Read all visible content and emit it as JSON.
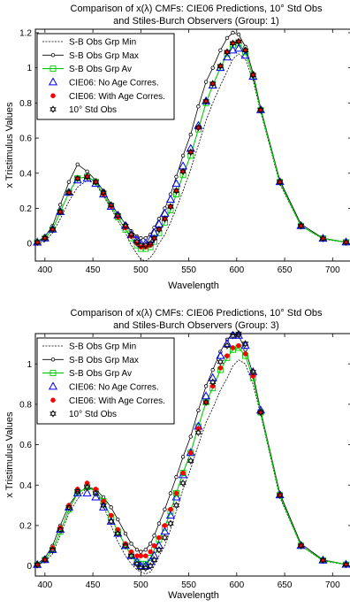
{
  "chart_data": [
    {
      "type": "line",
      "title_lines": [
        "Comparison of x(λ) CMFs: CIE06 Predictions, 10° Std Obs",
        "and Stiles-Burch Observers (Group: 1)"
      ],
      "xlabel": "Wavelength",
      "ylabel": "x Tristimulus Values",
      "xlim": [
        390,
        720
      ],
      "ylim": [
        -0.1,
        1.22
      ],
      "xticks": [
        400,
        450,
        500,
        550,
        600,
        650,
        700
      ],
      "yticks": [
        0,
        0.2,
        0.4,
        0.6,
        0.8,
        1,
        1.2
      ],
      "ytick_labels": [
        "0",
        "0.2",
        "0.4",
        "0.6",
        "0.8",
        "1",
        "1.2"
      ],
      "legend_position": "top-left",
      "x": [
        392,
        400,
        408,
        416,
        425,
        434,
        444,
        453,
        461,
        469,
        476,
        484,
        490,
        496,
        500,
        505,
        510,
        514,
        519,
        525,
        531,
        537,
        544,
        552,
        560,
        568,
        575,
        583,
        590,
        596,
        602,
        609,
        617,
        625,
        645,
        667,
        690,
        714
      ],
      "series": [
        {
          "name": "S-B Obs Grp Min",
          "style": "dashed",
          "marker": "none",
          "values": [
            0.0,
            0.01,
            0.06,
            0.14,
            0.24,
            0.32,
            0.36,
            0.34,
            0.27,
            0.2,
            0.13,
            0.06,
            -0.01,
            -0.06,
            -0.09,
            -0.1,
            -0.08,
            -0.05,
            0.0,
            0.05,
            0.12,
            0.2,
            0.3,
            0.42,
            0.56,
            0.7,
            0.8,
            0.9,
            0.98,
            1.05,
            1.08,
            1.05,
            0.93,
            0.75,
            0.34,
            0.1,
            0.025,
            0.006
          ]
        },
        {
          "name": "S-B Obs Grp Max",
          "style": "solid",
          "marker": "dot",
          "values": [
            0.01,
            0.04,
            0.1,
            0.22,
            0.35,
            0.45,
            0.41,
            0.36,
            0.3,
            0.22,
            0.17,
            0.11,
            0.07,
            0.04,
            0.03,
            0.03,
            0.05,
            0.09,
            0.14,
            0.2,
            0.28,
            0.38,
            0.5,
            0.62,
            0.78,
            0.92,
            1.0,
            1.1,
            1.17,
            1.2,
            1.19,
            1.12,
            0.97,
            0.77,
            0.36,
            0.11,
            0.03,
            0.008
          ]
        },
        {
          "name": "S-B Obs Grp Av",
          "style": "solid",
          "marker": "square",
          "values": [
            0.006,
            0.03,
            0.08,
            0.18,
            0.29,
            0.37,
            0.38,
            0.35,
            0.28,
            0.21,
            0.15,
            0.08,
            0.03,
            -0.01,
            -0.03,
            -0.03,
            -0.02,
            0.01,
            0.06,
            0.12,
            0.19,
            0.28,
            0.39,
            0.5,
            0.65,
            0.8,
            0.9,
            1.0,
            1.08,
            1.13,
            1.14,
            1.09,
            0.95,
            0.76,
            0.35,
            0.1,
            0.028,
            0.007
          ]
        },
        {
          "name": "CIE06: No Age Corres.",
          "style": "none",
          "marker": "triangle",
          "values": [
            0.006,
            0.03,
            0.08,
            0.18,
            0.29,
            0.36,
            0.37,
            0.34,
            0.28,
            0.21,
            0.16,
            0.1,
            0.05,
            0.02,
            0.0,
            0.0,
            0.02,
            0.06,
            0.11,
            0.17,
            0.25,
            0.34,
            0.44,
            0.54,
            0.67,
            0.81,
            0.9,
            1.0,
            1.06,
            1.1,
            1.11,
            1.07,
            0.95,
            0.76,
            0.35,
            0.1,
            0.028,
            0.007
          ]
        },
        {
          "name": "CIE06: With Age Corres.",
          "style": "none",
          "marker": "filled-circle",
          "values": [
            0.006,
            0.03,
            0.08,
            0.18,
            0.29,
            0.37,
            0.38,
            0.35,
            0.28,
            0.21,
            0.15,
            0.09,
            0.04,
            0.0,
            -0.02,
            -0.02,
            -0.01,
            0.03,
            0.08,
            0.14,
            0.21,
            0.3,
            0.41,
            0.52,
            0.66,
            0.81,
            0.91,
            1.01,
            1.09,
            1.14,
            1.15,
            1.1,
            0.96,
            0.76,
            0.35,
            0.1,
            0.028,
            0.007
          ]
        },
        {
          "name": "10° Std Obs",
          "style": "none",
          "marker": "hexagram",
          "values": [
            0.006,
            0.03,
            0.08,
            0.18,
            0.29,
            0.37,
            0.38,
            0.35,
            0.29,
            0.22,
            0.16,
            0.1,
            0.05,
            0.01,
            -0.01,
            -0.01,
            0.0,
            0.03,
            0.08,
            0.14,
            0.21,
            0.3,
            0.41,
            0.52,
            0.66,
            0.81,
            0.91,
            1.01,
            1.09,
            1.14,
            1.15,
            1.1,
            0.96,
            0.76,
            0.35,
            0.1,
            0.028,
            0.007
          ]
        }
      ]
    },
    {
      "type": "line",
      "title_lines": [
        "Comparison of x(λ) CMFs: CIE06 Predictions, 10° Std Obs",
        "and Stiles-Burch Observers (Group: 3)"
      ],
      "xlabel": "Wavelength",
      "ylabel": "x Tristimulus Values",
      "xlim": [
        390,
        720
      ],
      "ylim": [
        -0.05,
        1.15
      ],
      "xticks": [
        400,
        450,
        500,
        550,
        600,
        650,
        700
      ],
      "yticks": [
        0,
        0.2,
        0.4,
        0.6,
        0.8,
        1
      ],
      "ytick_labels": [
        "0",
        "0.2",
        "0.4",
        "0.6",
        "0.8",
        "1"
      ],
      "legend_position": "top-left",
      "x": [
        392,
        400,
        408,
        416,
        425,
        434,
        444,
        453,
        461,
        469,
        476,
        484,
        490,
        496,
        500,
        505,
        510,
        514,
        519,
        525,
        531,
        537,
        544,
        552,
        560,
        568,
        575,
        583,
        590,
        596,
        602,
        609,
        617,
        625,
        645,
        667,
        690,
        714
      ],
      "series": [
        {
          "name": "S-B Obs Grp Min",
          "style": "dashed",
          "marker": "none",
          "values": [
            0.004,
            0.02,
            0.06,
            0.15,
            0.26,
            0.33,
            0.39,
            0.37,
            0.3,
            0.2,
            0.12,
            0.05,
            0.01,
            -0.02,
            -0.03,
            -0.04,
            -0.03,
            0.0,
            0.05,
            0.1,
            0.18,
            0.27,
            0.38,
            0.48,
            0.6,
            0.71,
            0.78,
            0.87,
            0.93,
            0.99,
            1.02,
            1.0,
            0.9,
            0.75,
            0.34,
            0.1,
            0.025,
            0.006
          ]
        },
        {
          "name": "S-B Obs Grp Max",
          "style": "solid",
          "marker": "dot",
          "values": [
            0.01,
            0.04,
            0.1,
            0.2,
            0.3,
            0.36,
            0.39,
            0.38,
            0.34,
            0.29,
            0.23,
            0.16,
            0.11,
            0.08,
            0.07,
            0.08,
            0.11,
            0.15,
            0.21,
            0.28,
            0.36,
            0.44,
            0.54,
            0.64,
            0.77,
            0.89,
            0.97,
            1.06,
            1.12,
            1.15,
            1.14,
            1.07,
            0.95,
            0.77,
            0.36,
            0.11,
            0.03,
            0.008
          ]
        },
        {
          "name": "S-B Obs Grp Av",
          "style": "solid",
          "marker": "square",
          "values": [
            0.006,
            0.03,
            0.08,
            0.17,
            0.28,
            0.36,
            0.39,
            0.37,
            0.32,
            0.24,
            0.17,
            0.1,
            0.05,
            0.02,
            0.01,
            0.01,
            0.04,
            0.08,
            0.13,
            0.19,
            0.27,
            0.36,
            0.46,
            0.56,
            0.69,
            0.81,
            0.88,
            0.97,
            1.03,
            1.07,
            1.08,
            1.04,
            0.93,
            0.76,
            0.35,
            0.1,
            0.028,
            0.007
          ]
        },
        {
          "name": "CIE06: No Age Corres.",
          "style": "none",
          "marker": "triangle",
          "values": [
            0.006,
            0.03,
            0.08,
            0.18,
            0.29,
            0.36,
            0.36,
            0.34,
            0.29,
            0.22,
            0.16,
            0.1,
            0.05,
            0.02,
            0.0,
            0.0,
            0.02,
            0.05,
            0.1,
            0.17,
            0.25,
            0.34,
            0.45,
            0.56,
            0.69,
            0.84,
            0.93,
            1.04,
            1.1,
            1.14,
            1.14,
            1.09,
            0.96,
            0.77,
            0.35,
            0.1,
            0.028,
            0.007
          ]
        },
        {
          "name": "CIE06: With Age Corres.",
          "style": "none",
          "marker": "filled-circle",
          "values": [
            0.006,
            0.03,
            0.09,
            0.19,
            0.3,
            0.38,
            0.41,
            0.38,
            0.32,
            0.25,
            0.18,
            0.11,
            0.07,
            0.05,
            0.05,
            0.05,
            0.07,
            0.1,
            0.14,
            0.2,
            0.28,
            0.36,
            0.46,
            0.56,
            0.68,
            0.81,
            0.89,
            0.98,
            1.04,
            1.08,
            1.09,
            1.05,
            0.94,
            0.76,
            0.35,
            0.1,
            0.028,
            0.007
          ]
        },
        {
          "name": "10° Std Obs",
          "style": "none",
          "marker": "hexagram",
          "values": [
            0.006,
            0.03,
            0.08,
            0.18,
            0.29,
            0.37,
            0.39,
            0.36,
            0.3,
            0.22,
            0.16,
            0.1,
            0.05,
            0.01,
            -0.01,
            -0.01,
            0.0,
            0.03,
            0.08,
            0.14,
            0.21,
            0.3,
            0.41,
            0.52,
            0.66,
            0.81,
            0.91,
            1.01,
            1.09,
            1.14,
            1.15,
            1.1,
            0.96,
            0.76,
            0.35,
            0.1,
            0.028,
            0.007
          ]
        }
      ]
    }
  ],
  "colors": {
    "axis": "#000000",
    "sb_min": "#000000",
    "sb_max": "#000000",
    "sb_av": "#00cc00",
    "cie06_no_age": "#0000ff",
    "cie06_with_age": "#ff0000",
    "std_obs": "#000000"
  }
}
